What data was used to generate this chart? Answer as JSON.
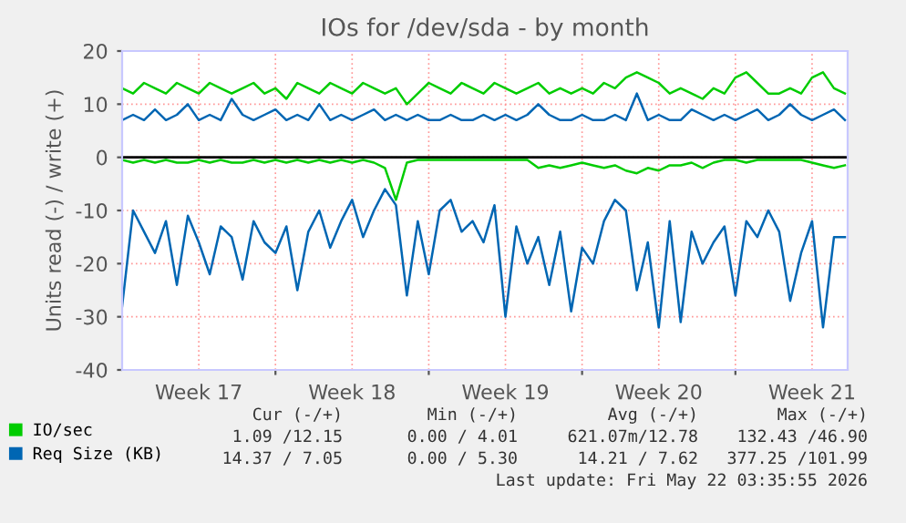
{
  "chart_data": {
    "type": "line",
    "title": "IOs for /dev/sda - by month",
    "ylabel": "Units read (-) / write (+)",
    "x": [
      "2026-04-20T00:00",
      "2026-04-20T12:00",
      "2026-04-21T00:00",
      "2026-04-21T12:00",
      "2026-04-22T00:00",
      "2026-04-22T12:00",
      "2026-04-23T00:00",
      "2026-04-23T12:00",
      "2026-04-24T00:00",
      "2026-04-24T12:00",
      "2026-04-25T00:00",
      "2026-04-25T12:00",
      "2026-04-26T00:00",
      "2026-04-26T12:00",
      "2026-04-27T00:00",
      "2026-04-27T12:00",
      "2026-04-28T00:00",
      "2026-04-28T12:00",
      "2026-04-29T00:00",
      "2026-04-29T12:00",
      "2026-04-30T00:00",
      "2026-04-30T12:00",
      "2026-05-01T00:00",
      "2026-05-01T12:00",
      "2026-05-02T00:00",
      "2026-05-02T12:00",
      "2026-05-03T00:00",
      "2026-05-03T12:00",
      "2026-05-04T00:00",
      "2026-05-04T12:00",
      "2026-05-05T00:00",
      "2026-05-05T12:00",
      "2026-05-06T00:00",
      "2026-05-06T12:00",
      "2026-05-07T00:00",
      "2026-05-07T12:00",
      "2026-05-08T00:00",
      "2026-05-08T12:00",
      "2026-05-09T00:00",
      "2026-05-09T12:00",
      "2026-05-10T00:00",
      "2026-05-10T12:00",
      "2026-05-11T00:00",
      "2026-05-11T12:00",
      "2026-05-12T00:00",
      "2026-05-12T12:00",
      "2026-05-13T00:00",
      "2026-05-13T12:00",
      "2026-05-14T00:00",
      "2026-05-14T12:00",
      "2026-05-15T00:00",
      "2026-05-15T12:00",
      "2026-05-16T00:00",
      "2026-05-16T12:00",
      "2026-05-17T00:00",
      "2026-05-17T12:00",
      "2026-05-18T00:00",
      "2026-05-18T12:00",
      "2026-05-19T00:00",
      "2026-05-19T12:00",
      "2026-05-20T00:00",
      "2026-05-20T12:00",
      "2026-05-21T00:00",
      "2026-05-21T12:00",
      "2026-05-22T00:00",
      "2026-05-22T12:00",
      "2026-05-23T00:00"
    ],
    "series": [
      {
        "name": "IO/sec",
        "color": "#00cc00",
        "values": [
          13,
          12,
          14,
          13,
          12,
          14,
          13,
          12,
          14,
          13,
          12,
          13,
          14,
          12,
          13,
          11,
          14,
          13,
          12,
          14,
          13,
          12,
          14,
          13,
          12,
          13,
          10,
          12,
          14,
          13,
          12,
          14,
          13,
          12,
          14,
          13,
          12,
          13,
          14,
          12,
          13,
          12,
          13,
          12,
          14,
          13,
          15,
          16,
          15,
          14,
          12,
          13,
          12,
          11,
          13,
          12,
          15,
          16,
          14,
          12,
          12,
          13,
          12,
          15,
          16,
          13,
          12
        ]
      },
      {
        "color": "#00cc00",
        "values": [
          -0.5,
          -1,
          -0.5,
          -1,
          -0.5,
          -1,
          -1,
          -0.5,
          -1,
          -0.5,
          -1,
          -1,
          -0.5,
          -1,
          -0.5,
          -1,
          -0.5,
          -1,
          -0.5,
          -1,
          -0.5,
          -1,
          -0.5,
          -1,
          -2,
          -8,
          -1,
          -0.5,
          -0.5,
          -0.5,
          -0.5,
          -0.5,
          -0.5,
          -0.5,
          -0.5,
          -0.5,
          -0.5,
          -0.5,
          -2,
          -1.5,
          -2,
          -1.5,
          -1,
          -1.5,
          -2,
          -1.5,
          -2.5,
          -3,
          -2,
          -2.5,
          -1.5,
          -1.5,
          -1,
          -2,
          -1,
          -0.5,
          -0.5,
          -1,
          -0.5,
          -0.5,
          -0.5,
          -0.5,
          -0.5,
          -1,
          -1.5,
          -2,
          -1.5
        ]
      },
      {
        "name": "Req Size (KB)",
        "color": "#0066b3",
        "values": [
          7,
          8,
          7,
          9,
          7,
          8,
          10,
          7,
          8,
          7,
          11,
          8,
          7,
          8,
          9,
          7,
          8,
          7,
          10,
          7,
          8,
          7,
          8,
          9,
          7,
          8,
          7,
          8,
          7,
          7,
          8,
          7,
          7,
          8,
          7,
          8,
          7,
          8,
          10,
          8,
          7,
          7,
          8,
          7,
          7,
          8,
          7,
          12,
          7,
          8,
          7,
          7,
          9,
          8,
          7,
          8,
          7,
          8,
          9,
          7,
          8,
          10,
          8,
          7,
          8,
          9,
          7
        ]
      },
      {
        "color": "#0066b3",
        "values": [
          -28,
          -10,
          -14,
          -18,
          -12,
          -24,
          -11,
          -16,
          -22,
          -13,
          -15,
          -23,
          -12,
          -16,
          -18,
          -13,
          -25,
          -14,
          -10,
          -17,
          -12,
          -8,
          -15,
          -10,
          -6,
          -9,
          -26,
          -12,
          -22,
          -10,
          -8,
          -14,
          -12,
          -16,
          -9,
          -30,
          -13,
          -20,
          -15,
          -24,
          -14,
          -29,
          -17,
          -20,
          -12,
          -8,
          -10,
          -25,
          -16,
          -32,
          -12,
          -31,
          -14,
          -20,
          -16,
          -13,
          -26,
          -12,
          -15,
          -10,
          -14,
          -27,
          -18,
          -12,
          -32,
          -15,
          -15
        ]
      }
    ],
    "xlim": [
      "2026-04-20T00:00",
      "2026-05-23T03:00"
    ],
    "xticks": [
      {
        "value": "2026-04-23T12:00",
        "label": "Week 17"
      },
      {
        "value": "2026-04-27T00:00",
        "label": null
      },
      {
        "value": "2026-04-30T12:00",
        "label": "Week 18"
      },
      {
        "value": "2026-05-04T00:00",
        "label": null
      },
      {
        "value": "2026-05-07T12:00",
        "label": "Week 19"
      },
      {
        "value": "2026-05-11T00:00",
        "label": null
      },
      {
        "value": "2026-05-14T12:00",
        "label": "Week 20"
      },
      {
        "value": "2026-05-18T00:00",
        "label": null
      },
      {
        "value": "2026-05-21T12:00",
        "label": "Week 21"
      }
    ],
    "ylim": [
      -40,
      20
    ],
    "yticks": [
      -40,
      -30,
      -20,
      -10,
      0,
      10,
      20
    ],
    "ref_lines": [
      {
        "axis": "y",
        "value": 0,
        "color": "#000000"
      }
    ],
    "grid": true,
    "legend": "bottom left",
    "annotations": [
      "Cur (-/+)",
      "Min (-/+)",
      "Avg (-/+)",
      "Max (-/+)",
      "1.09 /12.15",
      "0.00 / 4.01",
      "621.07m/12.78",
      "132.43 /46.90",
      "14.37 / 7.05",
      "0.00 / 5.30",
      "14.21 / 7.62",
      "377.25 /101.99",
      "Last update: Fri May 22 03:35:55 2026"
    ]
  }
}
